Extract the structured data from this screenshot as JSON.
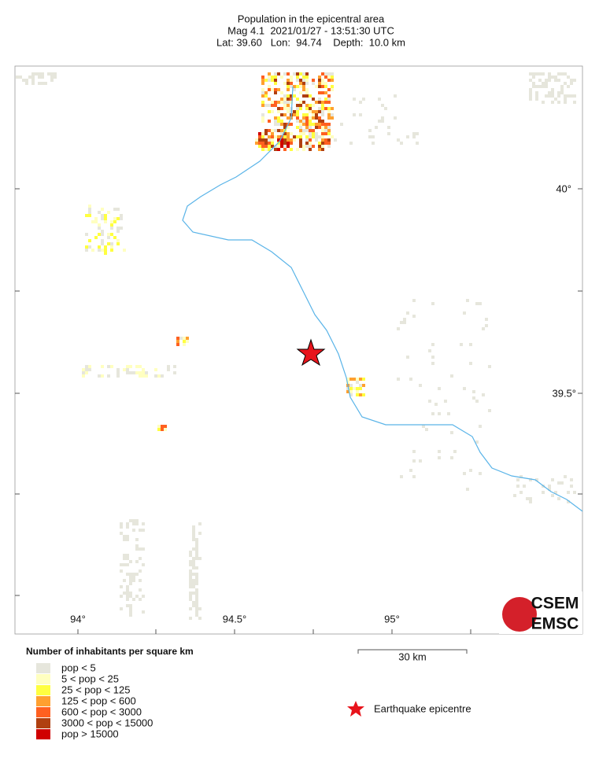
{
  "header": {
    "title": "Population in the epicentral area",
    "line2": "Mag 4.1  2021/01/27 - 13:51:30 UTC",
    "line3": "Lat: 39.60   Lon:  94.74    Depth:  10.0 km"
  },
  "map": {
    "lon_labels": [
      "94°",
      "94.5°",
      "95°"
    ],
    "lat_labels": [
      "40°",
      "39.5°"
    ],
    "scale_label": "30 km",
    "epicentre_label": "Earthquake epicentre"
  },
  "legend": {
    "title": "Number of inhabitants per square km",
    "items": [
      "pop < 5",
      "5 < pop < 25",
      "25 < pop < 125",
      "125 < pop < 600",
      "600 < pop < 3000",
      "3000 < pop < 15000",
      "pop > 15000"
    ]
  },
  "logo": {
    "top": "CSEM",
    "bottom": "EMSC"
  }
}
